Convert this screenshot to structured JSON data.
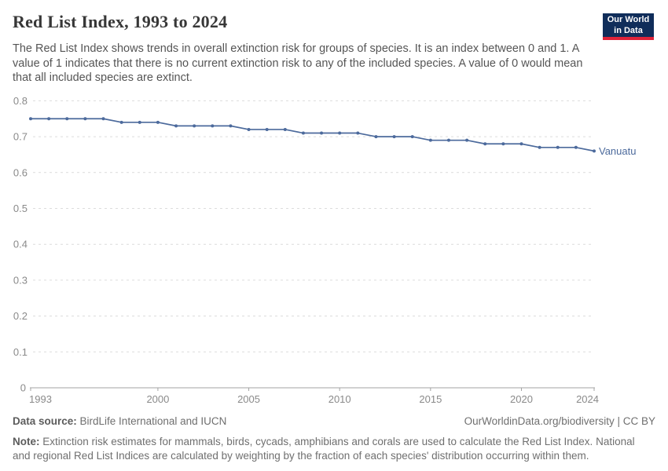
{
  "header": {
    "title": "Red List Index, 1993 to 2024",
    "subtitle": "The Red List Index shows trends in overall extinction risk for groups of species. It is an index between 0 and 1. A value of 1 indicates that there is no current extinction risk to any of the included species. A value of 0 would mean that all included species are extinct.",
    "logo": {
      "line1": "Our World",
      "line2": "in Data"
    }
  },
  "colors": {
    "line": "#4c6a9c",
    "grid": "#dcdcdc",
    "axis": "#a3a3a3",
    "tick_label": "#8a8a8a",
    "logo_bg": "#102d5a",
    "logo_stripe": "#e02339"
  },
  "chart_data": {
    "type": "line",
    "title": "Red List Index, 1993 to 2024",
    "xlabel": "",
    "ylabel": "",
    "xlim": [
      1993,
      2024
    ],
    "ylim": [
      0,
      0.8
    ],
    "x_ticks": [
      1993,
      2000,
      2005,
      2010,
      2015,
      2020,
      2024
    ],
    "y_ticks": [
      0,
      0.1,
      0.2,
      0.3,
      0.4,
      0.5,
      0.6,
      0.7,
      0.8
    ],
    "grid": "horizontal-dashed",
    "legend_position": "end-of-line-label",
    "series": [
      {
        "name": "Vanuatu",
        "color": "#4c6a9c",
        "x": [
          1993,
          1994,
          1995,
          1996,
          1997,
          1998,
          1999,
          2000,
          2001,
          2002,
          2003,
          2004,
          2005,
          2006,
          2007,
          2008,
          2009,
          2010,
          2011,
          2012,
          2013,
          2014,
          2015,
          2016,
          2017,
          2018,
          2019,
          2020,
          2021,
          2022,
          2023,
          2024
        ],
        "values": [
          0.75,
          0.75,
          0.75,
          0.75,
          0.75,
          0.74,
          0.74,
          0.74,
          0.73,
          0.73,
          0.73,
          0.73,
          0.72,
          0.72,
          0.72,
          0.71,
          0.71,
          0.71,
          0.71,
          0.7,
          0.7,
          0.7,
          0.69,
          0.69,
          0.69,
          0.68,
          0.68,
          0.68,
          0.67,
          0.67,
          0.67,
          0.66
        ]
      }
    ]
  },
  "footer": {
    "datasource_label": "Data source:",
    "datasource_text": " BirdLife International and IUCN",
    "attribution": "OurWorldinData.org/biodiversity | CC BY",
    "note_label": "Note:",
    "note_text": " Extinction risk estimates for mammals, birds, cycads, amphibians and corals are used to calculate the Red List Index. National and regional Red List Indices are calculated by weighting by the fraction of each species' distribution occurring within them."
  }
}
